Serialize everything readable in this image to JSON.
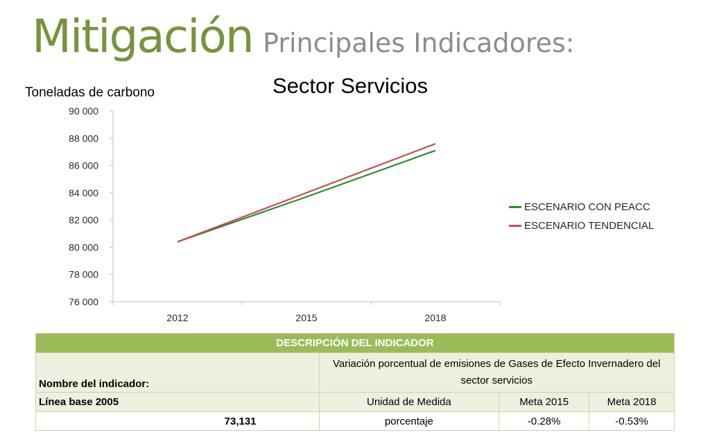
{
  "header": {
    "title_main": "Mitigación",
    "title_sub": "Principales Indicadores:"
  },
  "chart_data": {
    "type": "line",
    "title": "Sector Servicios",
    "ylabel": "Toneladas de carbono",
    "xlabel": "",
    "categories": [
      "2012",
      "2015",
      "2018"
    ],
    "ylim": [
      76000,
      90000
    ],
    "yticks": [
      76000,
      78000,
      80000,
      82000,
      84000,
      86000,
      88000,
      90000
    ],
    "ytick_labels": [
      "76 000",
      "78 000",
      "80 000",
      "82 000",
      "84 000",
      "86 000",
      "88 000",
      "90 000"
    ],
    "grid": false,
    "legend_position": "right",
    "series": [
      {
        "name": "ESCENARIO CON PEACC",
        "values": [
          80400,
          83700,
          87100
        ],
        "color": "#2e8b2e"
      },
      {
        "name": "ESCENARIO TENDENCIAL",
        "values": [
          80400,
          84000,
          87600
        ],
        "color": "#c0504d"
      }
    ]
  },
  "table": {
    "header": "DESCRIPCIÓN DEL INDICADOR",
    "name_label": "Nombre del indicador:",
    "name_value": "Variación porcentual de emisiones de Gases de Efecto Invernadero del sector servicios",
    "baseline_label": "Línea base 2005",
    "unit_label": "Unidad de Medida",
    "meta2015_label": "Meta 2015",
    "meta2018_label": "Meta 2018",
    "baseline_value": "73,131",
    "unit_value": "porcentaje",
    "meta2015_value": "-0.28%",
    "meta2018_value": "-0.53%"
  }
}
